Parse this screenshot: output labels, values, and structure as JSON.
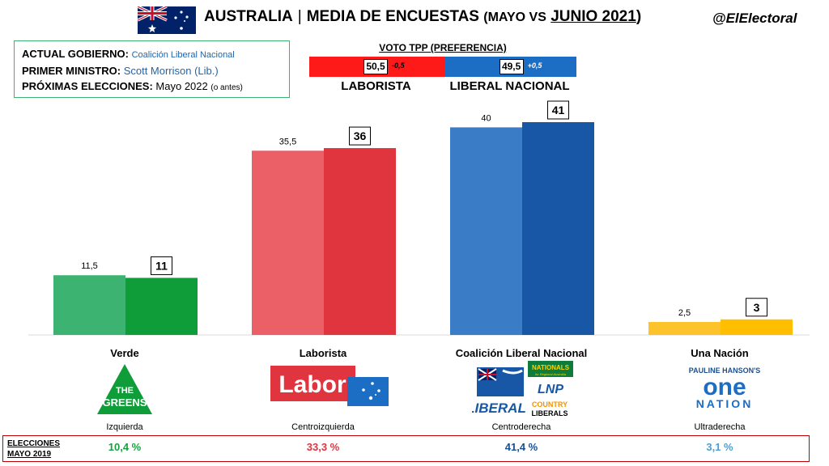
{
  "header": {
    "title_main": "AUSTRALIA",
    "separator": "|",
    "title_sub": "MEDIA DE ENCUESTAS",
    "title_paren_open": "(MAYO VS",
    "title_paren_month": "JUNIO 2021",
    "title_paren_close": ")",
    "handle": "@ElElectoral"
  },
  "info": {
    "gov_label": "ACTUAL GOBIERNO:",
    "gov_value": "Coalición Liberal Nacional",
    "pm_label": "PRIMER MINISTRO:",
    "pm_value": "Scott Morrison (Lib.)",
    "elections_label": "PRÓXIMAS ELECCIONES:",
    "elections_value": "Mayo 2022",
    "elections_note": "(o antes)"
  },
  "tpp": {
    "title": "VOTO TPP (PREFERENCIA)",
    "laborista": {
      "name": "LABORISTA",
      "value": "50,5",
      "change": "-0,5",
      "share": 50.5,
      "color": "#ff1a1a"
    },
    "liberal": {
      "name": "LIBERAL NACIONAL",
      "value": "49,5",
      "change": "+0,5",
      "share": 49.5,
      "color": "#1c6dc4"
    }
  },
  "chart_data": {
    "type": "bar",
    "categories": [
      "Verde",
      "Laborista",
      "Coalición Liberal Nacional",
      "Una Nación"
    ],
    "series": [
      {
        "name": "Mayo",
        "values": [
          11.5,
          35.5,
          40,
          2.5
        ],
        "labels": [
          "11,5",
          "35,5",
          "40",
          "2,5"
        ]
      },
      {
        "name": "Junio 2021",
        "values": [
          11,
          36,
          41,
          3
        ],
        "labels": [
          "11",
          "36",
          "41",
          "3"
        ]
      }
    ],
    "colors_may": [
      "#3cb371",
      "#eb5f67",
      "#3a7cc6",
      "#fcc42a"
    ],
    "colors_june": [
      "#0f9d3a",
      "#e0343f",
      "#1757a6",
      "#ffbf00"
    ],
    "ylim": [
      0,
      41
    ],
    "grid": false
  },
  "ideology": [
    "Izquierda",
    "Centroizquierda",
    "Centroderecha",
    "Ultraderecha"
  ],
  "logos": {
    "greens_line1": "THE",
    "greens_line2": "GREENS",
    "labor": "Labor",
    "liberal": "LIBERAL",
    "nationals": "NATIONALS",
    "nationals_sub": "for Regional Australia",
    "lnp": "LNP",
    "country_liberals_1": "COUNTRY",
    "country_liberals_2": "LIBERALS",
    "pauline": "PAULINE HANSON'S",
    "one": "one",
    "nation": "NATION"
  },
  "elections2019": {
    "label_line1": "ELECCIONES",
    "label_line2": "MAYO 2019",
    "values": [
      "10,4 %",
      "33,3 %",
      "41,4 %",
      "3,1 %"
    ],
    "colors": [
      "#1a9e3f",
      "#e0343f",
      "#1c4f8f",
      "#4a9fd8"
    ]
  }
}
